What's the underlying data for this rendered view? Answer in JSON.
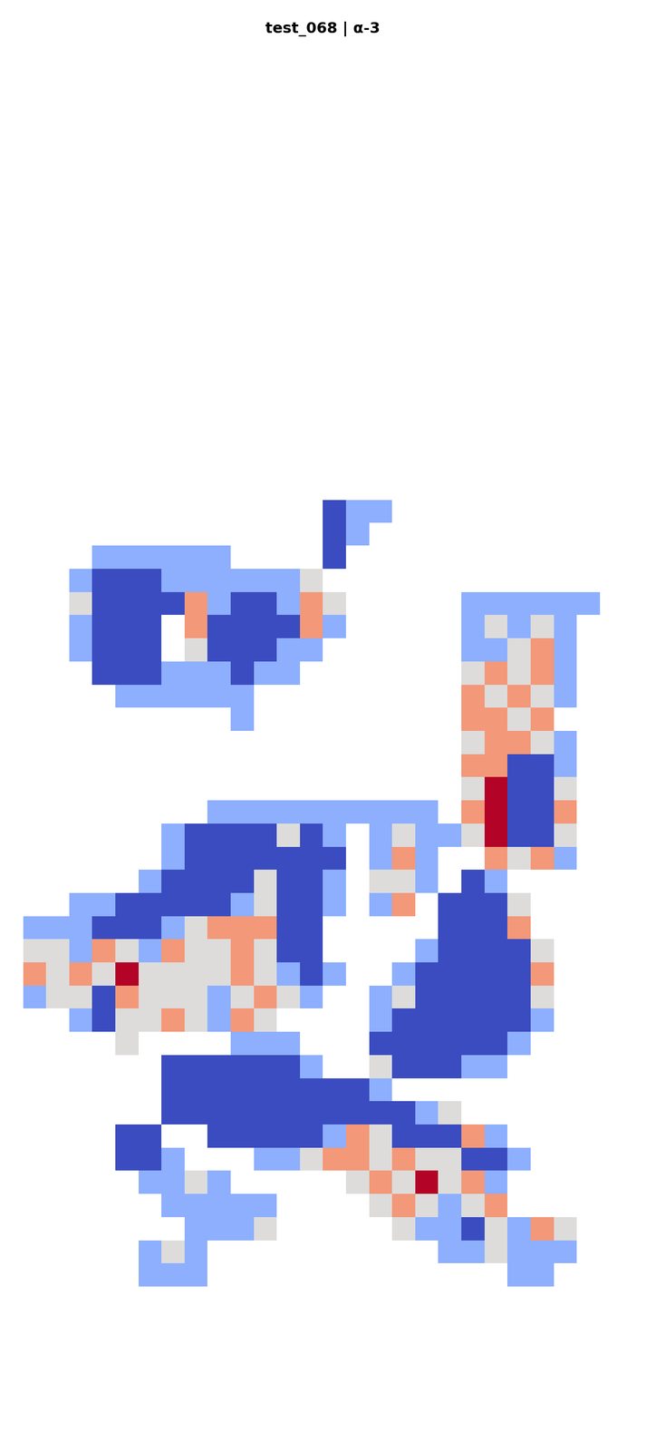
{
  "chart_data": {
    "type": "heatmap",
    "title": "test_068 | α-3",
    "color": "coolwarm",
    "tick_labels": false,
    "cells": [
      [
        null,
        null,
        null,
        null,
        null,
        null,
        null,
        null,
        null,
        null,
        null,
        null,
        null,
        null,
        0,
        0.25,
        0.25,
        null,
        null,
        null,
        null,
        null,
        null,
        null,
        null,
        null,
        null,
        null
      ],
      [
        null,
        null,
        null,
        null,
        null,
        null,
        null,
        null,
        null,
        null,
        null,
        null,
        null,
        null,
        0,
        0.25,
        null,
        null,
        null,
        null,
        null,
        null,
        null,
        null,
        null,
        null,
        null,
        null
      ],
      [
        null,
        null,
        null,
        null,
        0.25,
        0.25,
        0.25,
        0.25,
        0.25,
        0.25,
        null,
        null,
        null,
        null,
        0,
        null,
        null,
        null,
        null,
        null,
        null,
        null,
        null,
        null,
        null,
        null,
        null,
        null
      ],
      [
        null,
        null,
        null,
        0.25,
        0,
        0,
        0,
        0.25,
        0.25,
        0.25,
        0.25,
        0.25,
        0.25,
        0.5,
        null,
        null,
        null,
        null,
        null,
        null,
        null,
        null,
        null,
        null,
        null,
        null,
        null,
        null
      ],
      [
        null,
        null,
        null,
        0.5,
        0,
        0,
        0,
        0,
        0.75,
        0.25,
        0,
        0,
        0.25,
        0.75,
        0.5,
        null,
        null,
        null,
        null,
        null,
        0.25,
        0.25,
        0.25,
        0.25,
        0.25,
        0.25,
        null,
        null
      ],
      [
        null,
        null,
        null,
        0.25,
        0,
        0,
        0,
        null,
        0.75,
        0,
        0,
        0,
        0,
        0.75,
        0.25,
        null,
        null,
        null,
        null,
        null,
        0.25,
        0.5,
        0.25,
        0.5,
        0.25,
        null,
        null,
        null
      ],
      [
        null,
        null,
        null,
        0.25,
        0,
        0,
        0,
        null,
        0.5,
        0,
        0,
        0,
        0.25,
        0.25,
        null,
        null,
        null,
        null,
        null,
        null,
        0.25,
        0.25,
        0.5,
        0.75,
        0.25,
        null,
        null,
        null
      ],
      [
        null,
        null,
        null,
        null,
        0,
        0,
        0,
        0.25,
        0.25,
        0.25,
        0,
        0.25,
        0.25,
        null,
        null,
        null,
        null,
        null,
        null,
        null,
        0.5,
        0.75,
        0.5,
        0.75,
        0.25,
        null,
        null,
        null
      ],
      [
        null,
        null,
        null,
        null,
        null,
        0.25,
        0.25,
        0.25,
        0.25,
        0.25,
        0.25,
        null,
        null,
        null,
        null,
        null,
        null,
        null,
        null,
        null,
        0.75,
        0.5,
        0.75,
        0.5,
        0.25,
        null,
        null,
        null
      ],
      [
        null,
        null,
        null,
        null,
        null,
        null,
        null,
        null,
        null,
        null,
        0.25,
        null,
        null,
        null,
        null,
        null,
        null,
        null,
        null,
        null,
        0.75,
        0.75,
        0.5,
        0.75,
        null,
        null,
        null,
        null
      ],
      [
        null,
        null,
        null,
        null,
        null,
        null,
        null,
        null,
        null,
        null,
        null,
        null,
        null,
        null,
        null,
        null,
        null,
        null,
        null,
        null,
        0.5,
        0.75,
        0.75,
        0.5,
        0.25,
        null,
        null,
        null
      ],
      [
        null,
        null,
        null,
        null,
        null,
        null,
        null,
        null,
        null,
        null,
        null,
        null,
        null,
        null,
        null,
        null,
        null,
        null,
        null,
        null,
        0.75,
        0.75,
        0,
        0,
        0.25,
        null,
        null,
        null
      ],
      [
        null,
        null,
        null,
        null,
        null,
        null,
        null,
        null,
        null,
        null,
        null,
        null,
        null,
        null,
        null,
        null,
        null,
        null,
        null,
        null,
        0.5,
        1,
        0,
        0,
        0.5,
        null,
        null,
        null
      ],
      [
        null,
        null,
        null,
        null,
        null,
        null,
        null,
        null,
        null,
        0.25,
        0.25,
        0.25,
        0.25,
        0.25,
        0.25,
        0.25,
        0.25,
        0.25,
        0.25,
        null,
        0.75,
        1,
        0,
        0,
        0.75,
        null,
        null,
        null
      ],
      [
        null,
        null,
        null,
        null,
        null,
        null,
        null,
        0.25,
        0,
        0,
        0,
        0,
        0.5,
        0,
        0.25,
        null,
        0.25,
        0.5,
        0.25,
        0.25,
        0.5,
        1,
        0,
        0,
        0.5,
        null,
        null,
        null
      ],
      [
        null,
        null,
        null,
        null,
        null,
        null,
        null,
        0.25,
        0,
        0,
        0,
        0,
        0,
        0,
        0,
        null,
        0.25,
        0.75,
        0.25,
        null,
        null,
        0.75,
        0.5,
        0.75,
        0.25,
        null,
        null,
        null
      ],
      [
        null,
        null,
        null,
        null,
        null,
        null,
        0.25,
        0,
        0,
        0,
        0,
        0.5,
        0,
        0,
        0.25,
        null,
        0.5,
        0.5,
        0.25,
        null,
        0,
        0.25,
        null,
        null,
        null,
        null,
        null,
        null
      ],
      [
        null,
        null,
        null,
        0.25,
        0.25,
        0,
        0,
        0,
        0,
        0,
        0.25,
        0.5,
        0,
        0,
        0.25,
        null,
        0.25,
        0.75,
        null,
        0,
        0,
        0,
        0.5,
        null,
        null,
        null,
        null,
        null
      ],
      [
        null,
        0.25,
        0.25,
        0.25,
        0,
        0,
        0,
        0.25,
        0.5,
        0.75,
        0.75,
        0.75,
        0,
        0,
        null,
        null,
        null,
        null,
        null,
        0,
        0,
        0,
        0.75,
        null,
        null,
        null,
        null,
        null
      ],
      [
        null,
        0.5,
        0.5,
        0.25,
        0.75,
        0.5,
        0.25,
        0.75,
        0.5,
        0.5,
        0.75,
        0.5,
        0,
        0,
        null,
        null,
        null,
        null,
        0.25,
        0,
        0,
        0,
        0,
        0.5,
        null,
        null,
        null,
        null
      ],
      [
        null,
        0.75,
        0.5,
        0.75,
        0.5,
        1,
        0.5,
        0.5,
        0.5,
        0.5,
        0.75,
        0.5,
        0.25,
        0,
        0.25,
        null,
        null,
        0.25,
        0,
        0,
        0,
        0,
        0,
        0.75,
        null,
        null,
        null,
        null
      ],
      [
        null,
        0.25,
        0.5,
        0.5,
        0,
        0.75,
        0.5,
        0.5,
        0.5,
        0.25,
        0.5,
        0.75,
        0.5,
        0.25,
        null,
        null,
        0.25,
        0.5,
        0,
        0,
        0,
        0,
        0,
        0.5,
        null,
        null,
        null,
        null
      ],
      [
        null,
        null,
        null,
        0.25,
        0,
        0.5,
        0.5,
        0.75,
        0.5,
        0.25,
        0.75,
        0.5,
        null,
        null,
        null,
        null,
        0.25,
        0,
        0,
        0,
        0,
        0,
        0,
        0.25,
        null,
        null,
        null,
        null
      ],
      [
        null,
        null,
        null,
        null,
        null,
        0.5,
        null,
        null,
        null,
        null,
        0.25,
        0.25,
        0.25,
        null,
        null,
        null,
        0,
        0,
        0,
        0,
        0,
        0,
        0.25,
        null,
        null,
        null,
        null,
        null
      ],
      [
        null,
        null,
        null,
        null,
        null,
        null,
        null,
        0,
        0,
        0,
        0,
        0,
        0,
        0.25,
        null,
        null,
        0.5,
        0,
        0,
        0,
        0.25,
        0.25,
        null,
        null,
        null,
        null,
        null,
        null
      ],
      [
        null,
        null,
        null,
        null,
        null,
        null,
        null,
        0,
        0,
        0,
        0,
        0,
        0,
        0,
        0,
        0,
        0.25,
        null,
        null,
        null,
        null,
        null,
        null,
        null,
        null,
        null,
        null,
        null
      ],
      [
        null,
        null,
        null,
        null,
        null,
        null,
        null,
        0,
        0,
        0,
        0,
        0,
        0,
        0,
        0,
        0,
        0,
        0,
        0.25,
        0.5,
        null,
        null,
        null,
        null,
        null,
        null,
        null,
        null
      ],
      [
        null,
        null,
        null,
        null,
        null,
        0,
        0,
        null,
        null,
        0,
        0,
        0,
        0,
        0,
        0.25,
        0.75,
        0.5,
        0,
        0,
        0,
        0.75,
        0.25,
        null,
        null,
        null,
        null,
        null,
        null
      ],
      [
        null,
        null,
        null,
        null,
        null,
        0,
        0,
        0.25,
        null,
        null,
        null,
        0.25,
        0.25,
        0.5,
        0.75,
        0.75,
        0.5,
        0.75,
        0.5,
        0.5,
        0,
        0,
        0.25,
        null,
        null,
        null,
        null,
        null
      ],
      [
        null,
        null,
        null,
        null,
        null,
        null,
        0.25,
        0.25,
        0.5,
        0.25,
        null,
        null,
        null,
        null,
        null,
        0.5,
        0.75,
        0.5,
        1,
        0.5,
        0.75,
        0.25,
        null,
        null,
        null,
        null,
        null,
        null
      ],
      [
        null,
        null,
        null,
        null,
        null,
        null,
        null,
        0.25,
        0.25,
        0.25,
        0.25,
        0.25,
        null,
        null,
        null,
        null,
        0.5,
        0.75,
        0.5,
        0.25,
        0.5,
        0.75,
        null,
        null,
        null,
        null,
        null,
        null
      ],
      [
        null,
        null,
        null,
        null,
        null,
        null,
        null,
        null,
        0.25,
        0.25,
        0.25,
        0.5,
        null,
        null,
        null,
        null,
        null,
        0.5,
        0.25,
        0.25,
        0,
        0.5,
        0.25,
        0.75,
        0.5,
        null,
        null,
        null
      ],
      [
        null,
        null,
        null,
        null,
        null,
        null,
        0.25,
        0.5,
        0.25,
        null,
        null,
        null,
        null,
        null,
        null,
        null,
        null,
        null,
        null,
        0.25,
        0.25,
        0.5,
        0.25,
        0.25,
        0.25,
        null,
        null,
        null
      ],
      [
        null,
        null,
        null,
        null,
        null,
        null,
        0.25,
        0.25,
        0.25,
        null,
        null,
        null,
        null,
        null,
        null,
        null,
        null,
        null,
        null,
        null,
        null,
        null,
        0.25,
        0.25,
        null,
        null,
        null,
        null
      ]
    ]
  }
}
